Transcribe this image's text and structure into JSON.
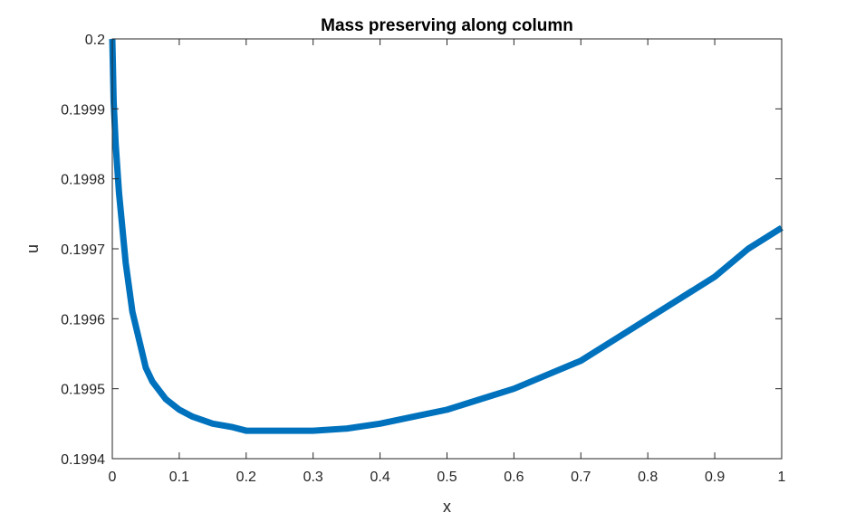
{
  "chart_data": {
    "type": "line",
    "title": "Mass preserving along column",
    "xlabel": "x",
    "ylabel": "u",
    "xlim": [
      0,
      1
    ],
    "ylim": [
      0.1994,
      0.2
    ],
    "xticks": [
      0,
      0.1,
      0.2,
      0.3,
      0.4,
      0.5,
      0.6,
      0.7,
      0.8,
      0.9,
      1
    ],
    "xtick_labels": [
      "0",
      "0.1",
      "0.2",
      "0.3",
      "0.4",
      "0.5",
      "0.6",
      "0.7",
      "0.8",
      "0.9",
      "1"
    ],
    "yticks": [
      0.1994,
      0.1995,
      0.1996,
      0.1997,
      0.1998,
      0.1999,
      0.2
    ],
    "ytick_labels": [
      "0.1994",
      "0.1995",
      "0.1996",
      "0.1997",
      "0.1998",
      "0.1999",
      "0.2"
    ],
    "grid": false,
    "series": [
      {
        "name": "u",
        "color": "#0072BD",
        "x": [
          0,
          0.002,
          0.005,
          0.01,
          0.02,
          0.03,
          0.04,
          0.05,
          0.06,
          0.08,
          0.1,
          0.12,
          0.15,
          0.18,
          0.2,
          0.22,
          0.25,
          0.27,
          0.3,
          0.35,
          0.4,
          0.45,
          0.5,
          0.55,
          0.6,
          0.65,
          0.7,
          0.75,
          0.8,
          0.85,
          0.9,
          0.95,
          1.0
        ],
        "y": [
          0.2,
          0.19991,
          0.19985,
          0.19978,
          0.19968,
          0.19961,
          0.19957,
          0.19953,
          0.19951,
          0.199485,
          0.19947,
          0.19946,
          0.19945,
          0.199445,
          0.19944,
          0.19944,
          0.19944,
          0.19944,
          0.19944,
          0.199443,
          0.19945,
          0.19946,
          0.19947,
          0.199485,
          0.1995,
          0.19952,
          0.19954,
          0.19957,
          0.1996,
          0.19963,
          0.19966,
          0.1997,
          0.19973
        ]
      }
    ]
  }
}
